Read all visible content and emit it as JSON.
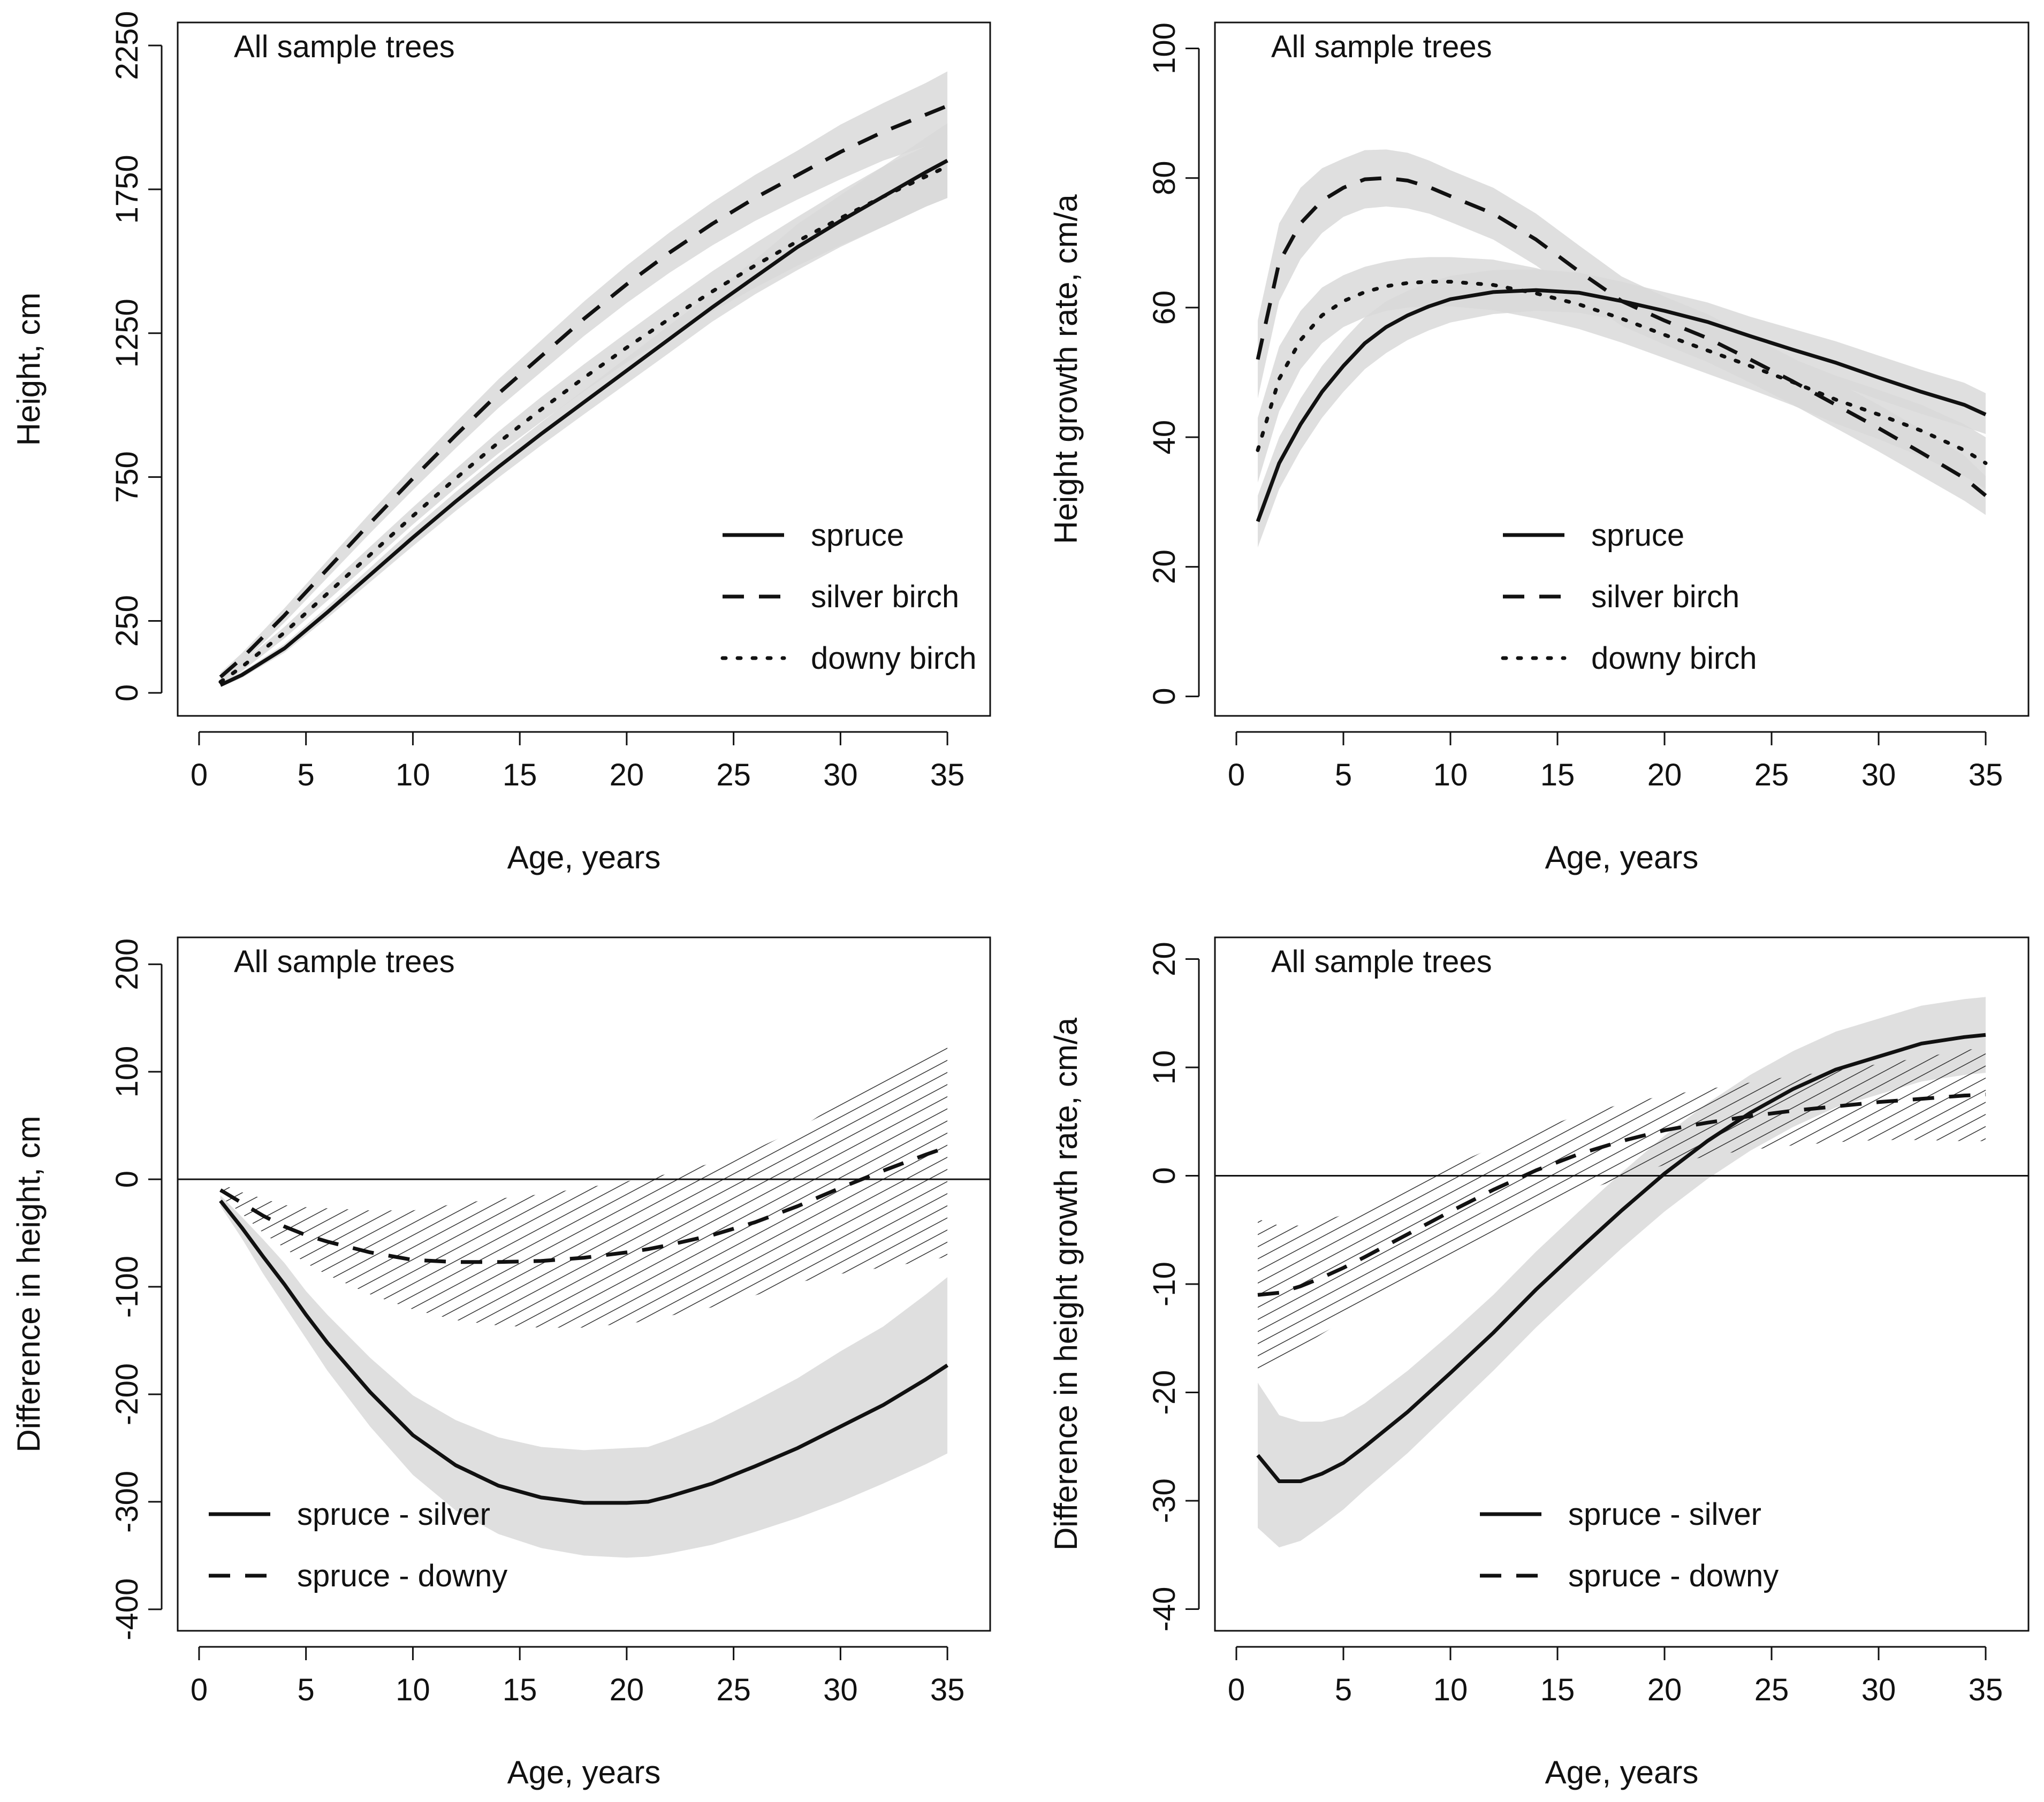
{
  "colors": {
    "band": "#d9d9d9",
    "line": "#111111",
    "hatch": "#333333",
    "background": "#ffffff"
  },
  "chart_data": [
    {
      "id": "height",
      "type": "line",
      "panel_label": "All sample trees",
      "xlabel": "Age, years",
      "ylabel": "Height, cm",
      "xlim": [
        -1,
        37
      ],
      "ylim": [
        -80,
        2330
      ],
      "xticks": [
        0,
        5,
        10,
        15,
        20,
        25,
        30,
        35
      ],
      "yticks": [
        0,
        250,
        750,
        1250,
        1750,
        2250
      ],
      "zero_line": false,
      "legend_position": "bottom-right",
      "x": [
        1,
        2,
        4,
        6,
        8,
        10,
        12,
        14,
        16,
        18,
        20,
        22,
        24,
        26,
        28,
        30,
        32,
        34,
        35
      ],
      "series": [
        {
          "name": "spruce",
          "dash": "solid",
          "values": [
            27,
            62,
            155,
            280,
            410,
            540,
            665,
            785,
            900,
            1010,
            1120,
            1230,
            1340,
            1445,
            1550,
            1640,
            1725,
            1810,
            1850
          ],
          "band": {
            "style": "gray",
            "lower": [
              20,
              52,
              140,
              260,
              385,
              510,
              632,
              748,
              860,
              968,
              1075,
              1182,
              1290,
              1385,
              1470,
              1550,
              1620,
              1690,
              1720
            ],
            "upper": [
              35,
              72,
              170,
              300,
              435,
              570,
              698,
              822,
              940,
              1052,
              1165,
              1278,
              1390,
              1505,
              1630,
              1730,
              1830,
              1930,
              1980
            ]
          }
        },
        {
          "name": "silver birch",
          "dash": "dash",
          "values": [
            55,
            120,
            270,
            430,
            590,
            745,
            895,
            1040,
            1170,
            1300,
            1420,
            1530,
            1630,
            1720,
            1800,
            1880,
            1950,
            2010,
            2040
          ],
          "band": {
            "style": "gray",
            "lower": [
              40,
              102,
              245,
              400,
              555,
              705,
              850,
              990,
              1115,
              1240,
              1355,
              1460,
              1555,
              1640,
              1715,
              1785,
              1850,
              1900,
              1920
            ],
            "upper": [
              70,
              138,
              295,
              460,
              625,
              785,
              940,
              1090,
              1225,
              1360,
              1485,
              1600,
              1705,
              1800,
              1885,
              1975,
              2050,
              2120,
              2160
            ]
          }
        },
        {
          "name": "downy birch",
          "dash": "dot",
          "values": [
            38,
            90,
            210,
            345,
            480,
            615,
            745,
            870,
            985,
            1095,
            1200,
            1300,
            1395,
            1485,
            1570,
            1650,
            1725,
            1795,
            1830
          ],
          "band": {
            "style": "gray",
            "lower": [
              28,
              75,
              190,
              320,
              452,
              585,
              712,
              832,
              942,
              1048,
              1148,
              1240,
              1325,
              1408,
              1485,
              1555,
              1620,
              1690,
              1720
            ],
            "upper": [
              48,
              105,
              230,
              370,
              508,
              645,
              778,
              908,
              1028,
              1142,
              1252,
              1360,
              1465,
              1562,
              1655,
              1745,
              1830,
              1900,
              1940
            ]
          }
        }
      ]
    },
    {
      "id": "growth-rate",
      "type": "line",
      "panel_label": "All sample trees",
      "xlabel": "Age, years",
      "ylabel": "Height growth rate, cm/a",
      "xlim": [
        -1,
        37
      ],
      "ylim": [
        -3,
        104
      ],
      "xticks": [
        0,
        5,
        10,
        15,
        20,
        25,
        30,
        35
      ],
      "yticks": [
        0,
        20,
        40,
        60,
        80,
        100
      ],
      "zero_line": false,
      "legend_position": "bottom-center",
      "x": [
        1,
        2,
        3,
        4,
        5,
        6,
        7,
        8,
        9,
        10,
        12,
        14,
        16,
        18,
        20,
        22,
        24,
        26,
        28,
        30,
        32,
        34,
        35
      ],
      "series": [
        {
          "name": "spruce",
          "dash": "solid",
          "values": [
            27,
            36,
            42,
            47,
            51,
            54.5,
            57,
            58.8,
            60.2,
            61.3,
            62.4,
            62.7,
            62.3,
            61,
            59.5,
            57.8,
            55.6,
            53.5,
            51.5,
            49.2,
            47,
            45,
            43.5
          ],
          "band": {
            "style": "gray",
            "lower": [
              23,
              32,
              38,
              43,
              47,
              50.5,
              53,
              55,
              56.5,
              57.7,
              59,
              59.5,
              59.2,
              58,
              56.6,
              54.8,
              52.6,
              50.3,
              48.2,
              45.8,
              43.6,
              41.6,
              40.5
            ],
            "upper": [
              31,
              40,
              46,
              51,
              55,
              58.5,
              61,
              62.6,
              63.9,
              64.9,
              65.8,
              65.9,
              65.4,
              64,
              62.4,
              60.8,
              58.6,
              56.7,
              54.8,
              52.6,
              50.4,
              48.4,
              46.8
            ]
          }
        },
        {
          "name": "silver birch",
          "dash": "dash",
          "values": [
            52,
            67,
            73,
            76.5,
            78.5,
            79.8,
            80,
            79.6,
            78.6,
            77.2,
            74.5,
            70.5,
            65.6,
            61,
            58,
            55.3,
            52,
            48.6,
            45,
            41.4,
            37.6,
            33.7,
            31
          ],
          "band": {
            "style": "gray",
            "lower": [
              46,
              61,
              67.5,
              71.5,
              74,
              75.3,
              75.6,
              75.3,
              74.5,
              73.2,
              70.5,
              66.5,
              61.6,
              57.2,
              54.3,
              51.6,
              48.4,
              45,
              41.4,
              37.8,
              34,
              30.2,
              28
            ],
            "upper": [
              58,
              73,
              78.5,
              81.5,
              83,
              84.3,
              84.4,
              83.9,
              82.7,
              81.2,
              78.5,
              74.5,
              69.6,
              64.8,
              61.7,
              59,
              55.6,
              52.2,
              48.6,
              45,
              41.2,
              37.2,
              34
            ]
          }
        },
        {
          "name": "downy birch",
          "dash": "dot",
          "values": [
            38,
            49,
            55,
            58.8,
            61,
            62.4,
            63.3,
            63.8,
            64,
            64,
            63.5,
            62.2,
            60.5,
            58.3,
            55.8,
            53.4,
            51,
            48.5,
            45.8,
            43.5,
            41,
            38,
            36
          ],
          "band": {
            "style": "gray",
            "lower": [
              33,
              44,
              50.5,
              54.5,
              57,
              58.5,
              59.5,
              60,
              60.2,
              60.2,
              59.6,
              58.3,
              56.7,
              54.6,
              52.2,
              49.8,
              47.4,
              44.9,
              42.1,
              39.7,
              37,
              34,
              32
            ],
            "upper": [
              43,
              54,
              59.5,
              63.1,
              65,
              66.3,
              67.1,
              67.6,
              67.8,
              67.8,
              67.4,
              66.1,
              64.3,
              62,
              59.4,
              57,
              54.6,
              52.1,
              49.5,
              47.3,
              45,
              42,
              40
            ]
          }
        }
      ]
    },
    {
      "id": "height-difference",
      "type": "line",
      "panel_label": "All sample trees",
      "xlabel": "Age, years",
      "ylabel": "Difference in height, cm",
      "xlim": [
        -1,
        37
      ],
      "ylim": [
        -420,
        225
      ],
      "xticks": [
        0,
        5,
        10,
        15,
        20,
        25,
        30,
        35
      ],
      "yticks": [
        -400,
        -300,
        -200,
        -100,
        0,
        100,
        200
      ],
      "zero_line": true,
      "legend_position": "bottom-left",
      "x": [
        1,
        2,
        3,
        4,
        5,
        6,
        8,
        10,
        12,
        14,
        16,
        18,
        20,
        21,
        22,
        24,
        26,
        28,
        30,
        32,
        34,
        35
      ],
      "series": [
        {
          "name": "spruce - silver",
          "dash": "solid",
          "values": [
            -20,
            -45,
            -72,
            -98,
            -126,
            -152,
            -198,
            -238,
            -266,
            -285,
            -296,
            -301,
            -301,
            -300,
            -295,
            -283,
            -267,
            -250,
            -230,
            -210,
            -186,
            -173
          ],
          "band": {
            "style": "gray",
            "lower": [
              -25,
              -55,
              -88,
              -118,
              -148,
              -178,
              -230,
              -275,
              -308,
              -330,
              -343,
              -350,
              -352,
              -351,
              -348,
              -340,
              -328,
              -315,
              -300,
              -283,
              -265,
              -255
            ],
            "upper": [
              -15,
              -35,
              -56,
              -78,
              -104,
              -126,
              -166,
              -201,
              -224,
              -240,
              -249,
              -252,
              -250,
              -249,
              -242,
              -226,
              -206,
              -185,
              -160,
              -137,
              -107,
              -91
            ]
          }
        },
        {
          "name": "spruce - downy",
          "dash": "dash",
          "values": [
            -10,
            -22,
            -34,
            -44,
            -52,
            -58,
            -68,
            -75,
            -77,
            -77,
            -76,
            -73,
            -68,
            -65,
            -61,
            -52,
            -40,
            -25,
            -8,
            8,
            23,
            30
          ],
          "band": {
            "style": "hatch",
            "lower": [
              -16,
              -32,
              -50,
              -64,
              -78,
              -89,
              -107,
              -121,
              -131,
              -136,
              -138,
              -138,
              -134,
              -132,
              -127,
              -119,
              -108,
              -96,
              -88,
              -82,
              -76,
              -72
            ],
            "upper": [
              -4,
              -12,
              -18,
              -24,
              -26,
              -27,
              -29,
              -29,
              -23,
              -18,
              -14,
              -8,
              -2,
              2,
              5,
              15,
              28,
              46,
              72,
              98,
              122,
              132
            ]
          }
        }
      ]
    },
    {
      "id": "growth-rate-difference",
      "type": "line",
      "panel_label": "All sample trees",
      "xlabel": "Age, years",
      "ylabel": "Difference in height growth rate, cm/a",
      "xlim": [
        -1,
        37
      ],
      "ylim": [
        -42,
        22
      ],
      "xticks": [
        0,
        5,
        10,
        15,
        20,
        25,
        30,
        35
      ],
      "yticks": [
        -40,
        -30,
        -20,
        -10,
        0,
        10,
        20
      ],
      "zero_line": true,
      "legend_position": "bottom-center",
      "x": [
        1,
        2,
        3,
        4,
        5,
        6,
        8,
        10,
        12,
        14,
        16,
        18,
        20,
        22,
        24,
        26,
        28,
        30,
        32,
        34,
        35
      ],
      "series": [
        {
          "name": "spruce - silver",
          "dash": "solid",
          "values": [
            -25.8,
            -28.2,
            -28.2,
            -27.5,
            -26.5,
            -25,
            -21.8,
            -18.2,
            -14.5,
            -10.5,
            -6.8,
            -3.2,
            0.2,
            3.2,
            5.8,
            8,
            9.8,
            11,
            12.2,
            12.8,
            13
          ],
          "band": {
            "style": "gray",
            "lower": [
              -32.5,
              -34.3,
              -33.7,
              -32.3,
              -30.8,
              -29,
              -25.6,
              -21.8,
              -18,
              -14,
              -10.3,
              -6.7,
              -3.3,
              -0.3,
              2.3,
              4.5,
              6.3,
              7.5,
              8.7,
              9.3,
              9.5
            ],
            "upper": [
              -19.1,
              -22.1,
              -22.7,
              -22.7,
              -22.2,
              -21,
              -18,
              -14.6,
              -11,
              -7,
              -3.3,
              0.3,
              3.7,
              6.7,
              9.3,
              11.5,
              13.3,
              14.5,
              15.7,
              16.3,
              16.5
            ]
          }
        },
        {
          "name": "spruce - downy",
          "dash": "dash",
          "values": [
            -11,
            -10.8,
            -10.2,
            -9.4,
            -8.5,
            -7.5,
            -5.4,
            -3.3,
            -1.3,
            0.5,
            2,
            3.2,
            4.2,
            4.9,
            5.5,
            6,
            6.4,
            6.8,
            7.1,
            7.4,
            7.5
          ],
          "band": {
            "style": "hatch",
            "lower": [
              -18,
              -17,
              -15.8,
              -14.6,
              -13.4,
              -12.2,
              -9.8,
              -7.5,
              -5.2,
              -3.2,
              -1.6,
              -0.2,
              1,
              1.8,
              2.4,
              2.8,
              3.1,
              3.3,
              3.3,
              3.2,
              3.2
            ],
            "upper": [
              -4,
              -4.6,
              -4.6,
              -4.2,
              -3.6,
              -2.8,
              -1,
              0.9,
              2.6,
              4.2,
              5.6,
              6.6,
              7.4,
              8,
              8.6,
              9.2,
              9.7,
              10.3,
              10.9,
              11.6,
              11.8
            ]
          }
        }
      ]
    }
  ]
}
